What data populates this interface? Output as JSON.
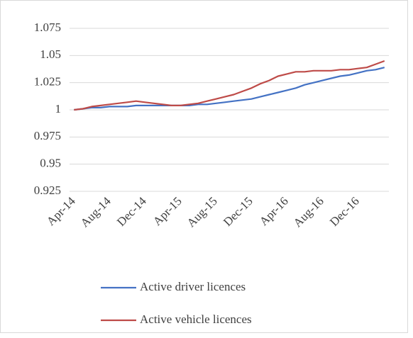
{
  "chart_data": {
    "type": "line",
    "categories": [
      "Apr-14",
      null,
      null,
      null,
      "Aug-14",
      null,
      null,
      null,
      "Dec-14",
      null,
      null,
      null,
      "Apr-15",
      null,
      null,
      null,
      "Aug-15",
      null,
      null,
      null,
      "Dec-15",
      null,
      null,
      null,
      "Apr-16",
      null,
      null,
      null,
      "Aug-16",
      null,
      null,
      null,
      "Dec-16",
      null,
      null,
      null
    ],
    "series": [
      {
        "name": "Active driver licences",
        "color": "#4472c4",
        "values": [
          1.0,
          1.001,
          1.002,
          1.002,
          1.003,
          1.003,
          1.003,
          1.004,
          1.004,
          1.004,
          1.004,
          1.004,
          1.004,
          1.004,
          1.005,
          1.005,
          1.006,
          1.007,
          1.008,
          1.009,
          1.01,
          1.012,
          1.014,
          1.016,
          1.018,
          1.02,
          1.023,
          1.025,
          1.027,
          1.029,
          1.031,
          1.032,
          1.034,
          1.036,
          1.037,
          1.039
        ]
      },
      {
        "name": "Active vehicle licences",
        "color": "#be4b48",
        "values": [
          1.0,
          1.001,
          1.003,
          1.004,
          1.005,
          1.006,
          1.007,
          1.008,
          1.007,
          1.006,
          1.005,
          1.004,
          1.004,
          1.005,
          1.006,
          1.008,
          1.01,
          1.012,
          1.014,
          1.017,
          1.02,
          1.024,
          1.027,
          1.031,
          1.033,
          1.035,
          1.035,
          1.036,
          1.036,
          1.036,
          1.037,
          1.037,
          1.038,
          1.039,
          1.042,
          1.045
        ]
      }
    ],
    "ylim": [
      0.925,
      1.075
    ],
    "yticks": [
      0.925,
      0.95,
      0.975,
      1,
      1.025,
      1.05,
      1.075
    ],
    "grid": true,
    "legend": "bottom"
  }
}
